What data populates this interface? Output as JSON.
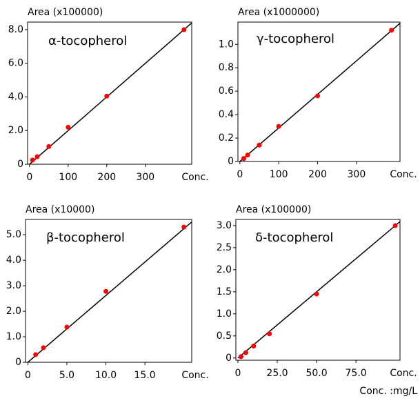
{
  "chart_data": [
    {
      "type": "scatter",
      "title": "α-tocopherol",
      "y_label": "Area (x100000)",
      "x_label": "Conc.",
      "x": [
        8,
        20,
        50,
        100,
        200,
        400
      ],
      "values": [
        0.25,
        0.45,
        1.05,
        2.2,
        4.05,
        8.0
      ],
      "color": "#ff0000",
      "line": {
        "x": [
          0,
          420
        ],
        "y": [
          0,
          8.4
        ]
      },
      "xlim": [
        -5,
        420
      ],
      "ylim": [
        0,
        8.45
      ],
      "xticks": [
        0,
        100,
        200,
        300
      ],
      "yticks": [
        0,
        {
          "value": 2,
          "label": "2.0"
        },
        {
          "value": 4,
          "label": "4.0"
        },
        {
          "value": 6,
          "label": "6.0"
        },
        {
          "value": 8,
          "label": "8.0"
        }
      ]
    },
    {
      "type": "scatter",
      "title": "γ-tocopherol",
      "y_label": "Area (x1000000)",
      "x_label": "Conc.",
      "x": [
        10,
        20,
        50,
        100,
        200,
        390
      ],
      "values": [
        0.025,
        0.055,
        0.14,
        0.3,
        0.56,
        1.12
      ],
      "color": "#ff0000",
      "line": {
        "x": [
          0,
          412
        ],
        "y": [
          0,
          1.18
        ]
      },
      "xlim": [
        -5,
        412
      ],
      "ylim": [
        0,
        1.19
      ],
      "xticks": [
        0,
        100,
        200,
        300
      ],
      "yticks": [
        0,
        0.2,
        0.4,
        0.6,
        0.8,
        {
          "value": 1,
          "label": "1.0"
        }
      ]
    },
    {
      "type": "scatter",
      "title": "β-tocopherol",
      "y_label": "Area (x10000)",
      "x_label": "Conc.",
      "x": [
        1,
        2,
        5,
        10,
        20
      ],
      "values": [
        0.3,
        0.57,
        1.38,
        2.78,
        5.3
      ],
      "color": "#ff0000",
      "line": {
        "x": [
          0,
          21
        ],
        "y": [
          0,
          5.5
        ]
      },
      "xlim": [
        -0.3,
        21
      ],
      "ylim": [
        0,
        5.6
      ],
      "xticks": [
        0,
        {
          "value": 5,
          "label": "5.0"
        },
        {
          "value": 10,
          "label": "10.0"
        },
        {
          "value": 15,
          "label": "15.0"
        }
      ],
      "yticks": [
        0,
        {
          "value": 1,
          "label": "1.0"
        },
        {
          "value": 2,
          "label": "2.0"
        },
        {
          "value": 3,
          "label": "3.0"
        },
        {
          "value": 4,
          "label": "4.0"
        },
        {
          "value": 5,
          "label": "5.0"
        }
      ]
    },
    {
      "type": "scatter",
      "title": "δ-tocopherol",
      "y_label": "Area (x100000)",
      "x_label": "Conc.",
      "x": [
        2,
        5,
        10,
        20,
        50,
        100
      ],
      "values": [
        0.03,
        0.12,
        0.27,
        0.55,
        1.45,
        3.0
      ],
      "color": "#ff0000",
      "line": {
        "x": [
          0,
          103
        ],
        "y": [
          0,
          3.09
        ]
      },
      "xlim": [
        -1.3,
        103
      ],
      "ylim": [
        -0.05,
        3.14
      ],
      "xticks": [
        0,
        {
          "value": 25,
          "label": "25.0"
        },
        {
          "value": 50,
          "label": "50.0"
        },
        {
          "value": 75,
          "label": "75.0"
        }
      ],
      "yticks": [
        0,
        0.5,
        {
          "value": 1,
          "label": "1.0"
        },
        1.5,
        {
          "value": 2,
          "label": "2.0"
        },
        2.5,
        {
          "value": 3,
          "label": "3.0"
        }
      ]
    }
  ],
  "footnote": "Conc. :mg/L"
}
